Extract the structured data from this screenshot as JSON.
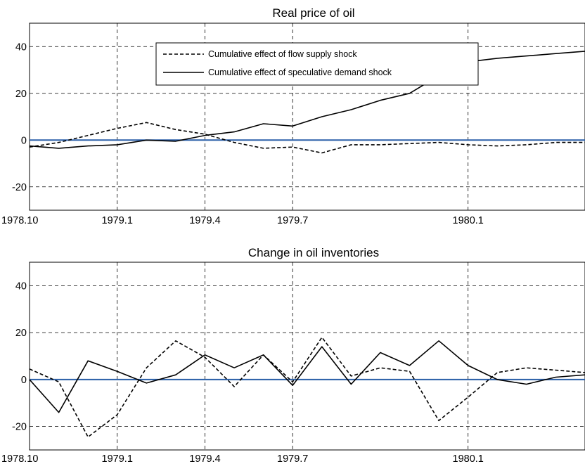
{
  "chart_data": [
    {
      "type": "line",
      "title": "Real price of oil",
      "xlabel": "",
      "ylabel": "",
      "x": [
        0,
        1,
        2,
        3,
        4,
        5,
        6,
        7,
        8,
        9,
        10,
        11,
        12,
        13,
        14,
        15,
        16,
        17,
        18,
        19
      ],
      "xlim": [
        0,
        19
      ],
      "x_ticks": [
        {
          "at": 0,
          "label": "1978.10"
        },
        {
          "at": 3,
          "label": "1979.1"
        },
        {
          "at": 6,
          "label": "1979.4"
        },
        {
          "at": 9,
          "label": "1979.7"
        },
        {
          "at": 15,
          "label": "1980.1"
        }
      ],
      "ylim": [
        -30,
        50
      ],
      "y_ticks": [
        -20,
        0,
        20,
        40
      ],
      "grid": true,
      "zero_line_color": "#2a5fa8",
      "legend": "top-center",
      "series": [
        {
          "name": "Cumulative effect of flow supply shock",
          "style": "dashed",
          "values": [
            -3,
            -1,
            2,
            5,
            7.5,
            4.5,
            2.5,
            -1,
            -3.5,
            -3,
            -5.5,
            -2,
            -2,
            -1.5,
            -1,
            -2,
            -2.5,
            -2,
            -1,
            -1
          ]
        },
        {
          "name": "Cumulative effect of speculative demand shock",
          "style": "solid",
          "values": [
            -2.5,
            -3.5,
            -2.5,
            -2,
            0,
            -0.5,
            2,
            3.5,
            7,
            6,
            10,
            13,
            17,
            20,
            27.5,
            33.5,
            35,
            36,
            37,
            38
          ]
        }
      ]
    },
    {
      "type": "line",
      "title": "Change in oil inventories",
      "xlabel": "",
      "ylabel": "",
      "x": [
        0,
        1,
        2,
        3,
        4,
        5,
        6,
        7,
        8,
        9,
        10,
        11,
        12,
        13,
        14,
        15,
        16,
        17,
        18,
        19
      ],
      "xlim": [
        0,
        19
      ],
      "x_ticks": [
        {
          "at": 0,
          "label": "1978.10"
        },
        {
          "at": 3,
          "label": "1979.1"
        },
        {
          "at": 6,
          "label": "1979.4"
        },
        {
          "at": 9,
          "label": "1979.7"
        },
        {
          "at": 15,
          "label": "1980.1"
        }
      ],
      "ylim": [
        -30,
        50
      ],
      "y_ticks": [
        -20,
        0,
        20,
        40
      ],
      "grid": true,
      "zero_line_color": "#2a5fa8",
      "series": [
        {
          "style": "dashed",
          "values": [
            4.5,
            -1,
            -24.5,
            -15,
            5,
            16.5,
            9.5,
            -3,
            10.5,
            -1,
            18,
            1.5,
            5,
            3.5,
            -17.5,
            -7.5,
            3,
            5,
            4,
            3
          ]
        },
        {
          "style": "solid",
          "values": [
            0,
            -14,
            8,
            3.5,
            -1.5,
            2,
            10.5,
            5,
            10.5,
            -2.5,
            14,
            -2,
            11.5,
            6,
            16.5,
            6,
            0,
            -2,
            1,
            2
          ]
        }
      ]
    }
  ]
}
